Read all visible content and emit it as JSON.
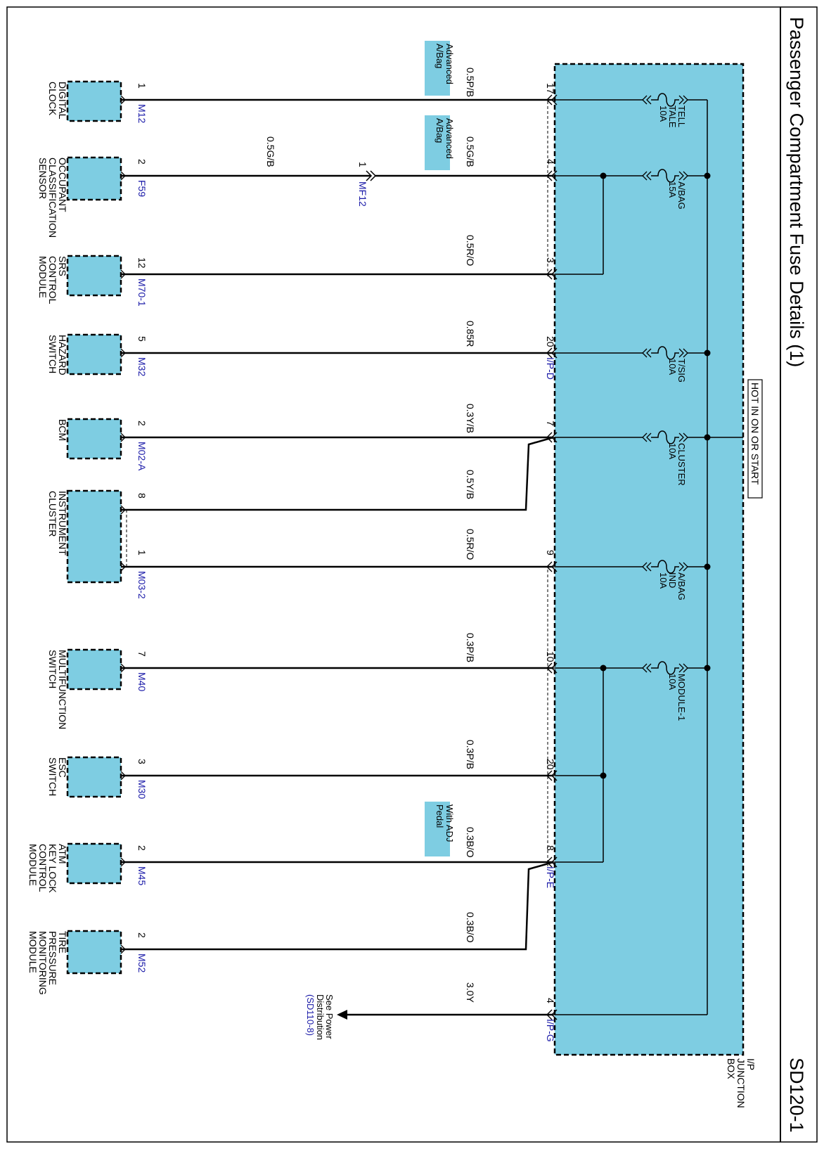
{
  "header": {
    "title": "Passenger Compartment Fuse Details (1)",
    "code": "SD120-1"
  },
  "junction_box": {
    "label_lines": [
      "I/P",
      "JUNCTION",
      "BOX"
    ],
    "hot_label": "HOT IN ON OR START",
    "connectors": [
      "I/P-D",
      "I/P-E",
      "I/P-G"
    ]
  },
  "fuses": [
    {
      "name_lines": [
        "TELL",
        "TALE"
      ],
      "rating": "10A"
    },
    {
      "name_lines": [
        "A/BAG"
      ],
      "rating": "15A"
    },
    {
      "name_lines": [
        "T/SIG"
      ],
      "rating": "10A"
    },
    {
      "name_lines": [
        "CLUSTER"
      ],
      "rating": "10A"
    },
    {
      "name_lines": [
        "A/BAG",
        "IND"
      ],
      "rating": "10A"
    },
    {
      "name_lines": [
        "MODULE-1"
      ],
      "rating": "10A"
    }
  ],
  "box_pins": [
    "17",
    "4",
    "3",
    "20",
    "7",
    "9",
    "10",
    "20",
    "8",
    "4"
  ],
  "wires": [
    "0.5P/B",
    "0.5G/B",
    "0.5G/B",
    "0.5R/O",
    "0.85R",
    "0.3Y/B",
    "0.5Y/B",
    "0.5R/O",
    "0.3P/B",
    "0.3P/B",
    "0.3B/O",
    "0.3B/O",
    "3.0Y"
  ],
  "option_tags": [
    [
      "Advanced",
      "A/Bag"
    ],
    [
      "Advanced",
      "A/Bag"
    ],
    [
      "With ADJ",
      "Pedal"
    ]
  ],
  "mid_connector": {
    "pin": "1",
    "name": "MF12"
  },
  "components": [
    {
      "name_lines": [
        "DIGITAL",
        "CLOCK"
      ],
      "pin": "1",
      "conn": "M12"
    },
    {
      "name_lines": [
        "OCCUPANT",
        "CLASSIFICATION",
        "SENSOR"
      ],
      "pin": "2",
      "conn": "F59"
    },
    {
      "name_lines": [
        "SRS",
        "CONTROL",
        "MODULE"
      ],
      "pin": "12",
      "conn": "M70-1"
    },
    {
      "name_lines": [
        "HAZARD",
        "SWITCH"
      ],
      "pin": "5",
      "conn": "M32"
    },
    {
      "name_lines": [
        "BCM"
      ],
      "pin": "2",
      "conn": "M02-A"
    },
    {
      "name_lines": [
        "INSTRUMENT",
        "CLUSTER"
      ],
      "pin": "8",
      "pin2": "1",
      "conn": "M03-2"
    },
    {
      "name_lines": [
        "MULTIFUNCTION",
        "SWITCH"
      ],
      "pin": "7",
      "conn": "M40"
    },
    {
      "name_lines": [
        "ESC",
        "SWITCH"
      ],
      "pin": "3",
      "conn": "M30"
    },
    {
      "name_lines": [
        "ATM",
        "KEY LOCK",
        "CONTROL",
        "MODULE"
      ],
      "pin": "2",
      "conn": "M45"
    },
    {
      "name_lines": [
        "TIRE",
        "PRESSURE",
        "MONITORING",
        "MODULE"
      ],
      "pin": "2",
      "conn": "M52"
    }
  ],
  "power_ref": {
    "lines": [
      "See Power",
      "Distribution"
    ],
    "ref": "(SD110-8)"
  },
  "colors": {
    "box_fill": "#7ecde2",
    "link_blue": "#1a1aa8",
    "wire": "#000000"
  }
}
